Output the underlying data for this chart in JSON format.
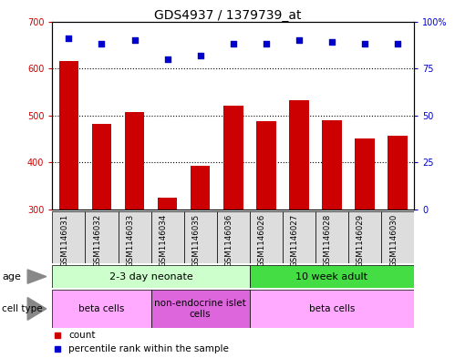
{
  "title": "GDS4937 / 1379739_at",
  "samples": [
    "GSM1146031",
    "GSM1146032",
    "GSM1146033",
    "GSM1146034",
    "GSM1146035",
    "GSM1146036",
    "GSM1146026",
    "GSM1146027",
    "GSM1146028",
    "GSM1146029",
    "GSM1146030"
  ],
  "counts": [
    615,
    483,
    507,
    325,
    392,
    520,
    488,
    533,
    490,
    452,
    456
  ],
  "percentile_ranks": [
    91,
    88,
    90,
    80,
    82,
    88,
    88,
    90,
    89,
    88,
    88
  ],
  "ylim_left": [
    300,
    700
  ],
  "ylim_right": [
    0,
    100
  ],
  "yticks_left": [
    300,
    400,
    500,
    600,
    700
  ],
  "yticks_right": [
    0,
    25,
    50,
    75,
    100
  ],
  "ytick_labels_right": [
    "0",
    "25",
    "50",
    "75",
    "100%"
  ],
  "bar_color": "#cc0000",
  "dot_color": "#0000cc",
  "grid_color": "#000000",
  "age_groups": [
    {
      "label": "2-3 day neonate",
      "start": 0,
      "end": 5,
      "color": "#ccffcc"
    },
    {
      "label": "10 week adult",
      "start": 6,
      "end": 10,
      "color": "#44dd44"
    }
  ],
  "cell_type_groups": [
    {
      "label": "beta cells",
      "start": 0,
      "end": 2,
      "color": "#ffaaff"
    },
    {
      "label": "non-endocrine islet\ncells",
      "start": 3,
      "end": 5,
      "color": "#dd66dd"
    },
    {
      "label": "beta cells",
      "start": 6,
      "end": 10,
      "color": "#ffaaff"
    }
  ],
  "legend_items": [
    {
      "label": "count",
      "color": "#cc0000"
    },
    {
      "label": "percentile rank within the sample",
      "color": "#0000cc"
    }
  ],
  "title_fontsize": 10,
  "tick_label_fontsize": 7,
  "bar_width": 0.6,
  "xtick_box_color": "#dddddd",
  "background_color": "#ffffff"
}
